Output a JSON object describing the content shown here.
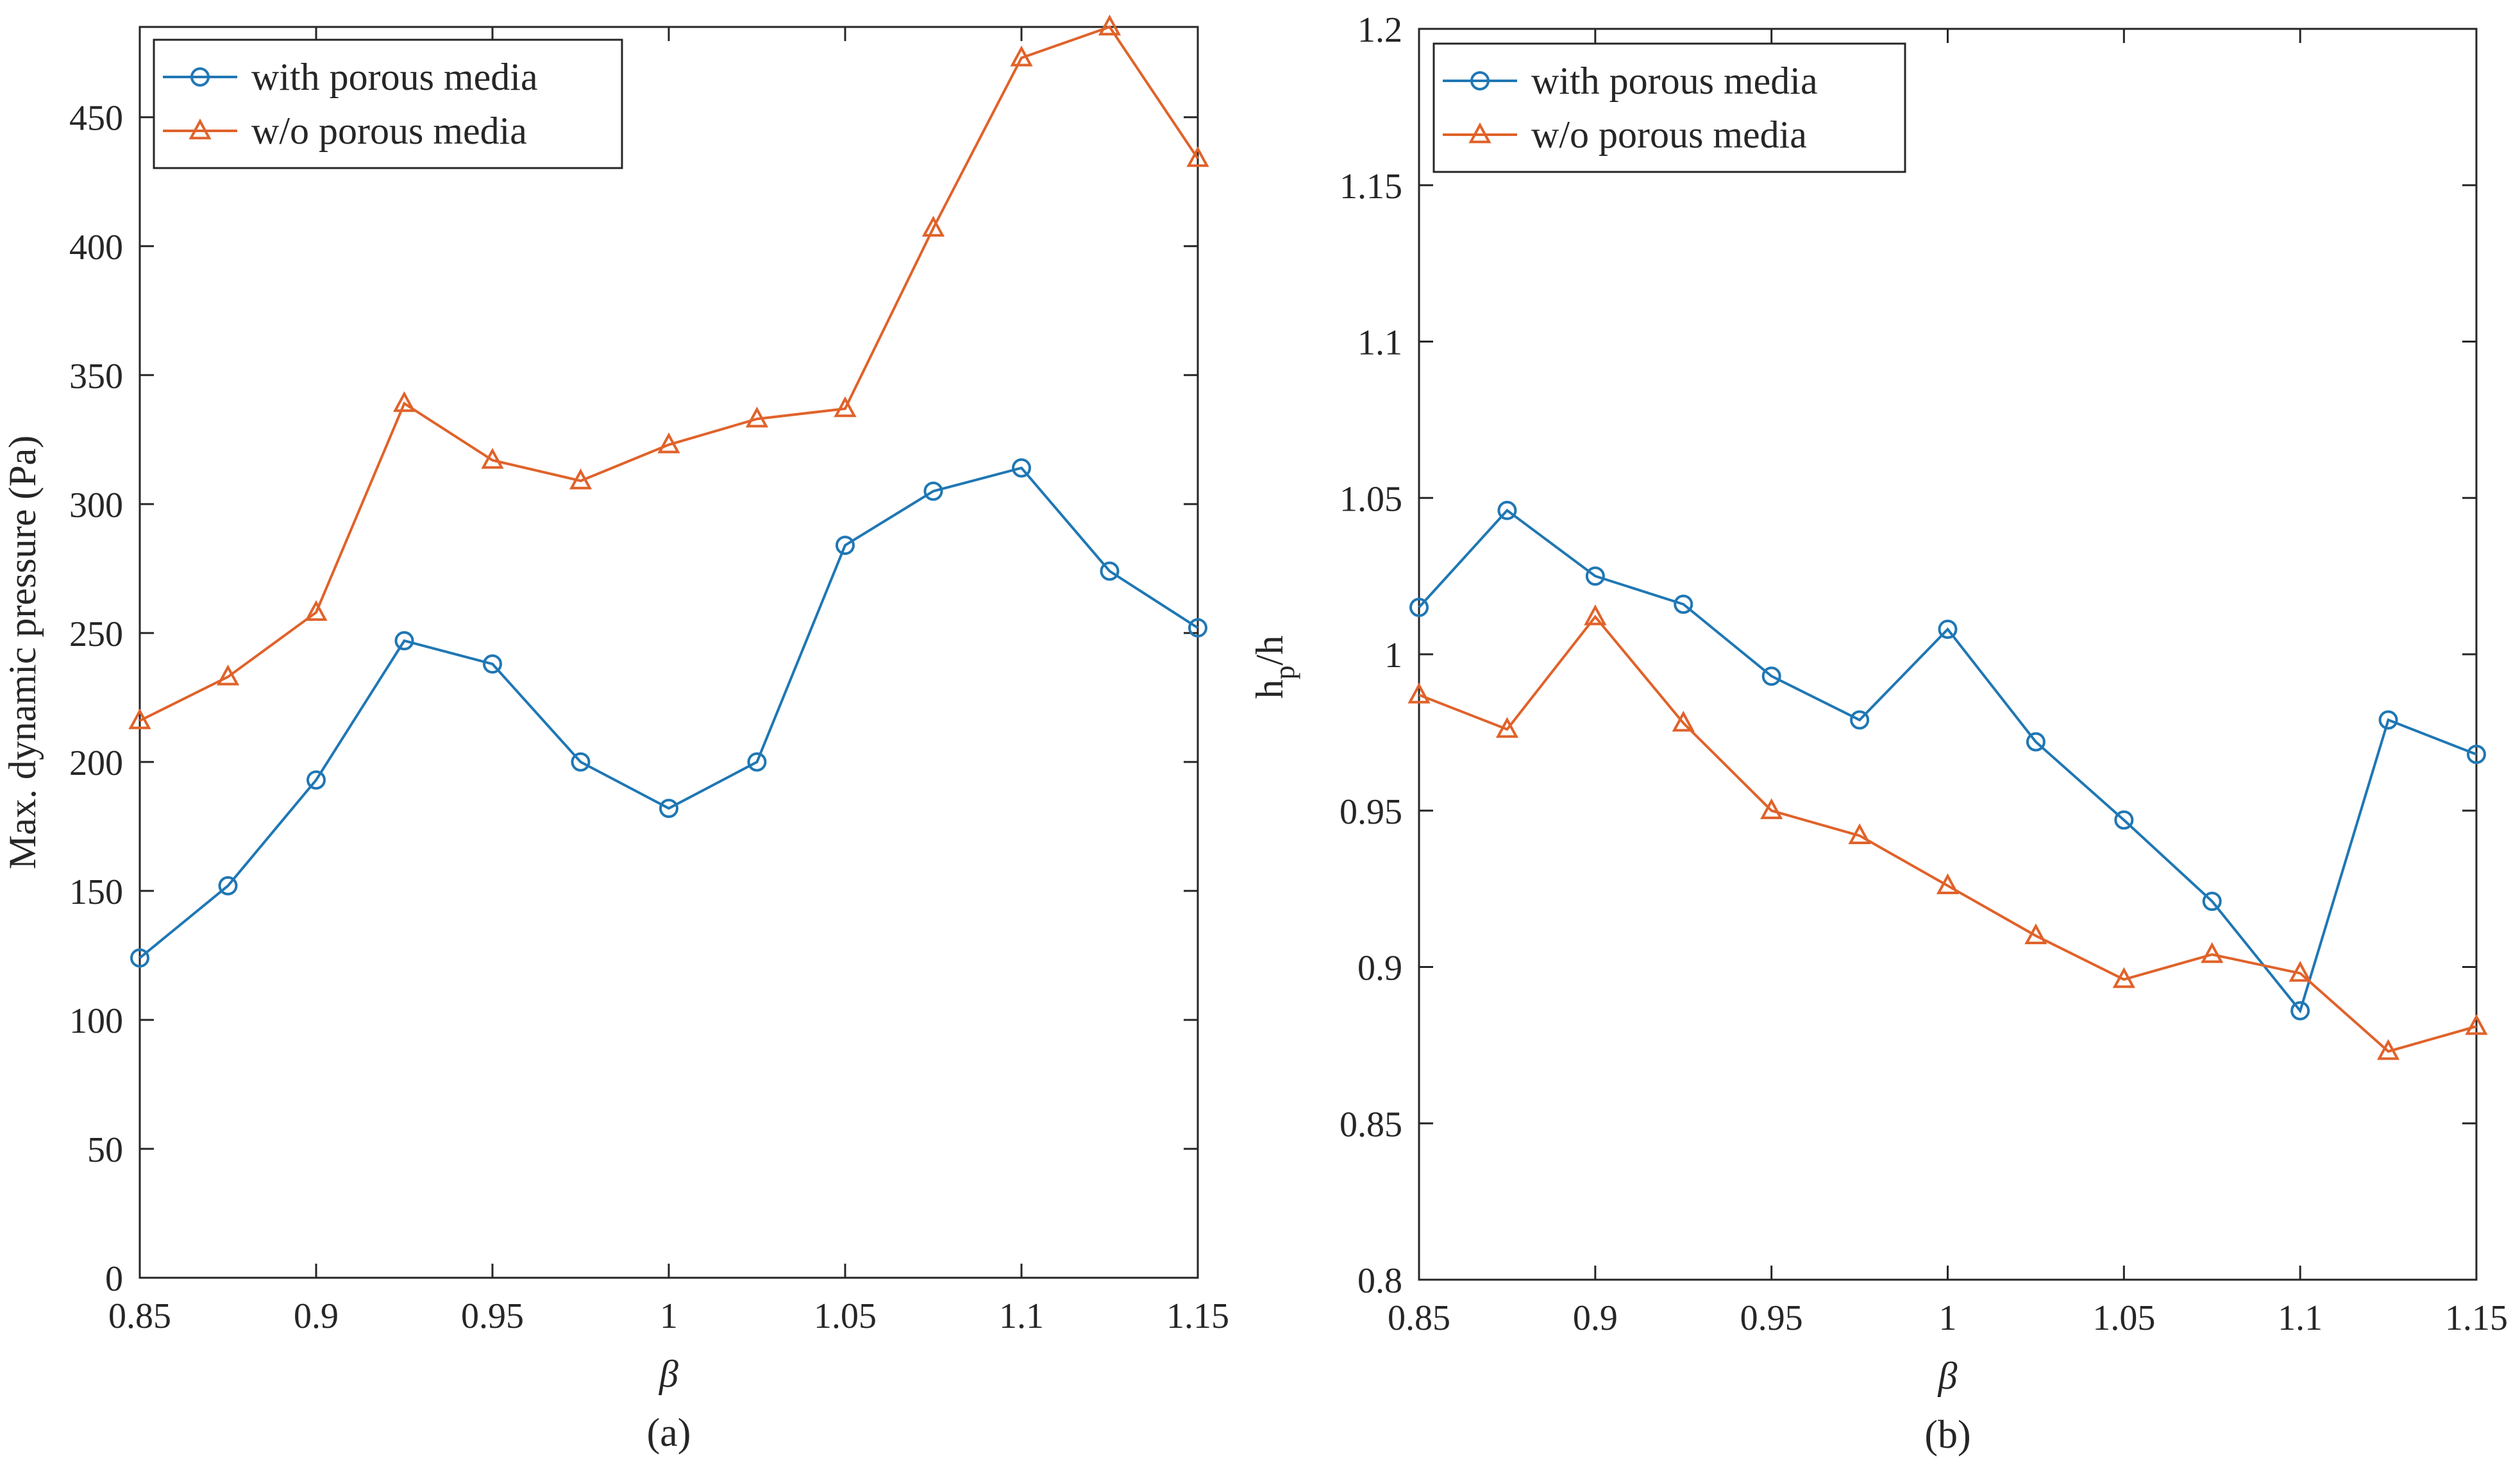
{
  "colors": {
    "series1": "#1f77b4",
    "series2": "#e0622a",
    "axis": "#262626"
  },
  "chart_data": [
    {
      "type": "line",
      "caption": "(a)",
      "xlabel": "β",
      "ylabel": "Max. dynamic pressure (Pa)",
      "xlim": [
        0.85,
        1.15
      ],
      "ylim": [
        0,
        485
      ],
      "xticks": [
        0.85,
        0.9,
        0.95,
        1,
        1.05,
        1.1,
        1.15
      ],
      "xticklabels": [
        "0.85",
        "0.9",
        "0.95",
        "1",
        "1.05",
        "1.1",
        "1.15"
      ],
      "yticks": [
        0,
        50,
        100,
        150,
        200,
        250,
        300,
        350,
        400,
        450
      ],
      "yticklabels": [
        "0",
        "50",
        "100",
        "150",
        "200",
        "250",
        "300",
        "350",
        "400",
        "450"
      ],
      "x": [
        0.85,
        0.875,
        0.9,
        0.925,
        0.95,
        0.975,
        1.0,
        1.025,
        1.05,
        1.075,
        1.1,
        1.125,
        1.15
      ],
      "legend_position": "top-left",
      "series": [
        {
          "name": "with porous media",
          "marker": "circle",
          "values": [
            124,
            152,
            193,
            247,
            238,
            200,
            182,
            200,
            284,
            305,
            314,
            274,
            252
          ]
        },
        {
          "name": "w/o porous media",
          "marker": "triangle",
          "values": [
            216,
            233,
            258,
            339,
            317,
            309,
            323,
            333,
            337,
            407,
            473,
            485,
            434
          ]
        }
      ]
    },
    {
      "type": "line",
      "caption": "(b)",
      "xlabel": "β",
      "ylabel": "hp/h",
      "ylabel_main": "h",
      "ylabel_sub": "p",
      "ylabel_tail": "/h",
      "xlim": [
        0.85,
        1.15
      ],
      "ylim": [
        0.8,
        1.2
      ],
      "xticks": [
        0.85,
        0.9,
        0.95,
        1,
        1.05,
        1.1,
        1.15
      ],
      "xticklabels": [
        "0.85",
        "0.9",
        "0.95",
        "1",
        "1.05",
        "1.1",
        "1.15"
      ],
      "yticks": [
        0.8,
        0.85,
        0.9,
        0.95,
        1.0,
        1.05,
        1.1,
        1.15,
        1.2
      ],
      "yticklabels": [
        "0.8",
        "0.85",
        "0.9",
        "0.95",
        "1",
        "1.05",
        "1.1",
        "1.15",
        "1.2"
      ],
      "x": [
        0.85,
        0.875,
        0.9,
        0.925,
        0.95,
        0.975,
        1.0,
        1.025,
        1.05,
        1.075,
        1.1,
        1.125,
        1.15
      ],
      "legend_position": "top-left",
      "series": [
        {
          "name": "with porous media",
          "marker": "circle",
          "values": [
            1.015,
            1.046,
            1.025,
            1.016,
            0.993,
            0.979,
            1.008,
            0.972,
            0.947,
            0.921,
            0.886,
            0.979,
            0.968
          ]
        },
        {
          "name": "w/o porous media",
          "marker": "triangle",
          "values": [
            0.987,
            0.976,
            1.012,
            0.978,
            0.95,
            0.942,
            0.926,
            0.91,
            0.896,
            0.904,
            0.898,
            0.873,
            0.881
          ]
        }
      ]
    }
  ]
}
